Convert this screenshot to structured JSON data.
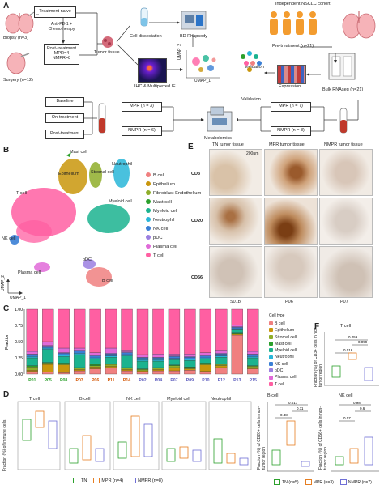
{
  "panels": {
    "A": "A",
    "B": "B",
    "C": "C",
    "D": "D",
    "E": "E",
    "F": "F"
  },
  "panelA": {
    "top_right_title": "Independent NSCLC cohort",
    "biopsy": "Biopsy (n=3)",
    "surgery": "Surgery (n=12)",
    "treatment_naive": "Treatment naive",
    "anti_pd1": "Anti-PD-1 + Chemotherapy",
    "post_treatment": "Post-treatment MPR=4 NMPR=8",
    "tumor_tissue": "Tumor tissue",
    "cell_dissociation": "Cell dissociation",
    "bd_rhapsody": "BD Rhapsody",
    "ihc": "IHC & Multiplexed IF",
    "umap_y": "UMAP_2",
    "umap_x": "UMAP_1",
    "validation1": "Validation",
    "validation2": "Validation",
    "expression": "Expression",
    "pretreatment": "Pre-treatment (n=21)",
    "bulk": "Bulk RNAseq (n=21)",
    "baseline": "Baseline",
    "on_treatment": "On-treatment",
    "post_treatment2": "Post-treatment",
    "mpr3": "MPR (n = 3)",
    "nmpr6": "NMPR (n = 6)",
    "mpr7": "MPR (n = 7)",
    "nmpr8": "NMPR (n = 8)",
    "metabolomics": "Metabolomics"
  },
  "panelB": {
    "labels": {
      "mast": "Mast cell",
      "epithelium": "Epithelium",
      "stromal": "Stromal cell",
      "neutrophil": "Neutrophil",
      "tcell": "T cell",
      "myeloid": "Myeloid cell",
      "nk": "NK cell",
      "pdc": "pDC",
      "plasma": "Plasma cell",
      "bcell": "B cell"
    },
    "umap_y": "UMAP_2",
    "umap_x": "UMAP_1",
    "legend": [
      {
        "name": "B cell",
        "color": "#f08080"
      },
      {
        "name": "Epithelium",
        "color": "#c9960c"
      },
      {
        "name": "Fibroblast Endothelium",
        "color": "#8fae2a"
      },
      {
        "name": "Mast cell",
        "color": "#2ca02c"
      },
      {
        "name": "Myeloid cell",
        "color": "#1bb38f"
      },
      {
        "name": "Neutrophil",
        "color": "#29b6d8"
      },
      {
        "name": "NK cell",
        "color": "#3a7fd5"
      },
      {
        "name": "pDC",
        "color": "#9b7fe0"
      },
      {
        "name": "Plasma cell",
        "color": "#e06ad8"
      },
      {
        "name": "T cell",
        "color": "#ff5fa2"
      }
    ]
  },
  "panelE": {
    "columns": [
      "TN tumor tissue",
      "MPR tumor tissue",
      "NMPR tumor tissue"
    ],
    "rows": [
      "CD3",
      "CD20",
      "CD56"
    ],
    "scale": "200μm",
    "samples": [
      "S01b",
      "P06",
      "P07"
    ]
  },
  "panelF": {
    "t_title": "T cell",
    "t_ylabel": "Fraction (%) of CD3+ cells in non-tumor region",
    "t_pvals": [
      "0.059",
      "0.016",
      "0.099"
    ],
    "b_title": "B cell",
    "b_ylabel": "Fraction (%) of CD20+ cells in non-tumor region",
    "b_pvals": [
      "0.017",
      "0.38",
      "0.11"
    ],
    "nk_title": "NK cell",
    "nk_ylabel": "Fraction (%) of CD56+ cells in non-tumor region",
    "nk_pvals": [
      "0.6",
      "0.98",
      "0.07"
    ],
    "legend": [
      {
        "name": "TN (n=5)",
        "color": "#2ca02c"
      },
      {
        "name": "MPR (n=3)",
        "color": "#e67e22"
      },
      {
        "name": "NMPR (n=7)",
        "color": "#6f6fd6"
      }
    ]
  },
  "panelD": {
    "ylabel": "Fraction (%) of immune cells",
    "titles": [
      "T cell",
      "B cell",
      "NK cell",
      "Myeloid cell",
      "Neutrophil"
    ],
    "legend": [
      {
        "name": "TN",
        "color": "#2ca02c"
      },
      {
        "name": "MPR (n=4)",
        "color": "#e67e22"
      },
      {
        "name": "NMPR (n=8)",
        "color": "#6f6fd6"
      }
    ]
  },
  "chart_data": {
    "type": "bar",
    "stacked": true,
    "ylabel": "Fraction",
    "legend_title": "Cell type",
    "categories": [
      "P01",
      "P05",
      "P08",
      "P03",
      "P06",
      "P11",
      "P14",
      "P02",
      "P04",
      "P07",
      "P09",
      "P10",
      "P12",
      "P13",
      "P15"
    ],
    "category_colors": [
      "#2ca02c",
      "#2ca02c",
      "#2ca02c",
      "#d35400",
      "#d35400",
      "#d35400",
      "#d35400",
      "#5b5bbd",
      "#5b5bbd",
      "#5b5bbd",
      "#5b5bbd",
      "#5b5bbd",
      "#5b5bbd",
      "#5b5bbd",
      "#5b5bbd"
    ],
    "series": [
      {
        "name": "B cell",
        "color": "#f08080",
        "values": [
          0.04,
          0.03,
          0.02,
          0.05,
          0.08,
          0.1,
          0.05,
          0.03,
          0.05,
          0.05,
          0.06,
          0.04,
          0.1,
          0.6,
          0.08
        ]
      },
      {
        "name": "Epithelium",
        "color": "#c9960c",
        "values": [
          0.02,
          0.12,
          0.12,
          0.02,
          0.03,
          0.02,
          0.02,
          0.02,
          0.02,
          0.05,
          0.02,
          0.1,
          0.03,
          0.02,
          0.02
        ]
      },
      {
        "name": "Stromal cell",
        "color": "#8fae2a",
        "values": [
          0.05,
          0.02,
          0.02,
          0.02,
          0.02,
          0.03,
          0.02,
          0.02,
          0.02,
          0.03,
          0.02,
          0.02,
          0.02,
          0.01,
          0.02
        ]
      },
      {
        "name": "Mast cell",
        "color": "#2ca02c",
        "values": [
          0.02,
          0.01,
          0.01,
          0.01,
          0.02,
          0.01,
          0.01,
          0.01,
          0.01,
          0.01,
          0.01,
          0.01,
          0.01,
          0.01,
          0.01
        ]
      },
      {
        "name": "Myeloid cell",
        "color": "#1bb38f",
        "values": [
          0.12,
          0.2,
          0.1,
          0.2,
          0.08,
          0.1,
          0.18,
          0.12,
          0.1,
          0.08,
          0.1,
          0.06,
          0.1,
          0.05,
          0.12
        ]
      },
      {
        "name": "Neutrophil",
        "color": "#29b6d8",
        "values": [
          0.02,
          0.02,
          0.02,
          0.02,
          0.02,
          0.02,
          0.02,
          0.02,
          0.02,
          0.02,
          0.02,
          0.02,
          0.02,
          0.01,
          0.02
        ]
      },
      {
        "name": "NK cell",
        "color": "#3a7fd5",
        "values": [
          0.03,
          0.03,
          0.03,
          0.04,
          0.03,
          0.03,
          0.03,
          0.03,
          0.03,
          0.03,
          0.03,
          0.03,
          0.03,
          0.02,
          0.03
        ]
      },
      {
        "name": "pDC",
        "color": "#9b7fe0",
        "values": [
          0.01,
          0.01,
          0.01,
          0.01,
          0.01,
          0.01,
          0.01,
          0.01,
          0.01,
          0.01,
          0.01,
          0.01,
          0.01,
          0.01,
          0.01
        ]
      },
      {
        "name": "Plasma cell",
        "color": "#e06ad8",
        "values": [
          0.04,
          0.06,
          0.07,
          0.03,
          0.04,
          0.08,
          0.03,
          0.04,
          0.05,
          0.03,
          0.04,
          0.04,
          0.05,
          0.03,
          0.04
        ]
      },
      {
        "name": "T cell",
        "color": "#ff5fa2",
        "values": [
          0.65,
          0.5,
          0.6,
          0.6,
          0.67,
          0.6,
          0.63,
          0.7,
          0.69,
          0.69,
          0.69,
          0.67,
          0.63,
          0.24,
          0.65
        ]
      }
    ],
    "ylim": [
      0,
      1
    ],
    "yticks": [
      "0.00",
      "0.25",
      "0.50",
      "0.75",
      "1.00"
    ]
  }
}
